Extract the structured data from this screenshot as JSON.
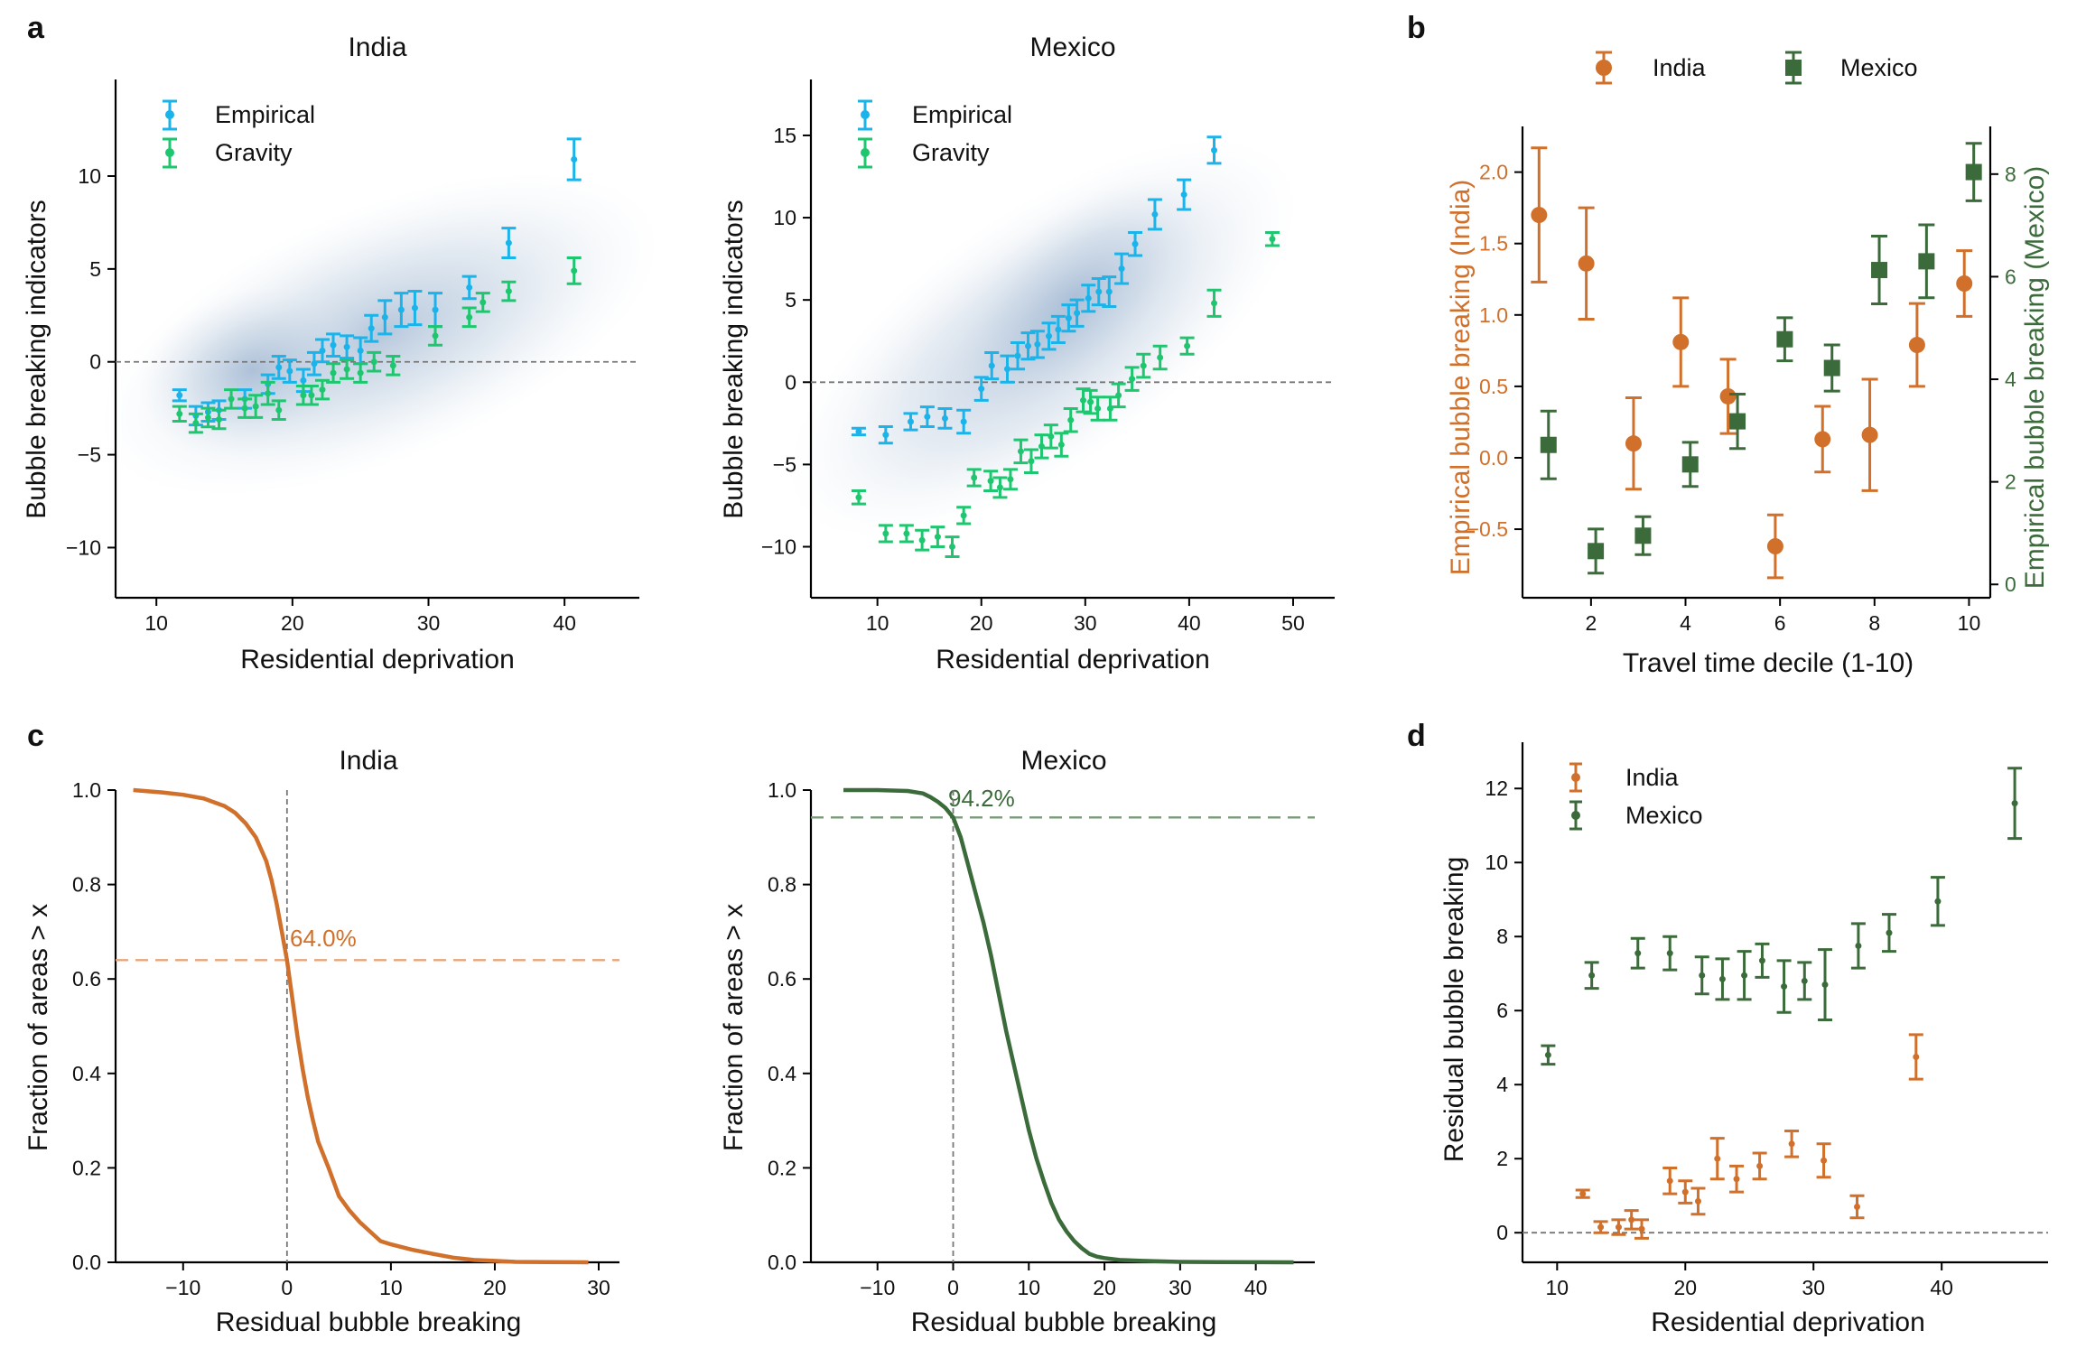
{
  "chart_data": [
    {
      "type": "scatter",
      "panel": "a",
      "title": "India",
      "xlabel": "Residential deprivation",
      "ylabel": "Bubble breaking indicators",
      "xlim": [
        7,
        45.5
      ],
      "ylim": [
        -12.7,
        15.2
      ],
      "xticks": [
        10,
        20,
        30,
        40
      ],
      "xtick_labels": [
        "10",
        "20",
        "30",
        "40"
      ],
      "yticks": [
        -10,
        -5,
        0,
        5,
        10
      ],
      "ytick_labels": [
        "−10",
        "−5",
        "0",
        "5",
        "10"
      ],
      "hline": 0,
      "legend": [
        "Empirical",
        "Gravity"
      ],
      "series": [
        {
          "name": "Empirical",
          "color": "#1ab3ea",
          "x": [
            11.7,
            12.9,
            13.8,
            14.6,
            16.5,
            18.2,
            19.0,
            19.8,
            20.8,
            21.6,
            22.2,
            23.0,
            24.0,
            25.0,
            25.8,
            26.8,
            28.0,
            29.0,
            30.5,
            33.0,
            35.9,
            40.7
          ],
          "y": [
            -1.8,
            -2.9,
            -2.7,
            -2.6,
            -2.0,
            -1.2,
            -0.3,
            -0.5,
            -1.0,
            -0.1,
            0.6,
            0.9,
            0.8,
            0.6,
            1.8,
            2.4,
            2.8,
            2.9,
            2.8,
            4.0,
            6.4,
            10.9
          ],
          "err": [
            0.3,
            0.5,
            0.5,
            0.5,
            0.5,
            0.5,
            0.6,
            0.6,
            0.6,
            0.6,
            0.6,
            0.6,
            0.6,
            0.7,
            0.7,
            0.9,
            0.9,
            0.9,
            0.9,
            0.6,
            0.8,
            1.1
          ]
        },
        {
          "name": "Gravity",
          "color": "#1ec76f",
          "x": [
            11.7,
            12.9,
            13.8,
            14.6,
            15.5,
            16.5,
            17.3,
            18.2,
            19.0,
            20.8,
            21.4,
            22.2,
            23.0,
            24.0,
            25.0,
            26.0,
            27.4,
            30.5,
            33.0,
            34.0,
            35.9,
            40.7
          ],
          "y": [
            -2.8,
            -3.3,
            -3.0,
            -3.1,
            -2.0,
            -2.5,
            -2.4,
            -1.7,
            -2.6,
            -1.8,
            -1.8,
            -1.5,
            -0.6,
            -0.4,
            -0.6,
            0.0,
            -0.2,
            1.4,
            2.4,
            3.2,
            3.8,
            4.9
          ],
          "err": [
            0.4,
            0.5,
            0.5,
            0.5,
            0.5,
            0.5,
            0.6,
            0.6,
            0.5,
            0.5,
            0.5,
            0.5,
            0.5,
            0.5,
            0.5,
            0.5,
            0.5,
            0.5,
            0.5,
            0.5,
            0.5,
            0.7
          ]
        }
      ]
    },
    {
      "type": "scatter",
      "panel": "a",
      "title": "Mexico",
      "xlabel": "Residential deprivation",
      "ylabel": "Bubble breaking indicators",
      "xlim": [
        3.6,
        54
      ],
      "ylim": [
        -13.1,
        18.4
      ],
      "xticks": [
        10,
        20,
        30,
        40,
        50
      ],
      "xtick_labels": [
        "10",
        "20",
        "30",
        "40",
        "50"
      ],
      "yticks": [
        -10,
        -5,
        0,
        5,
        10,
        15
      ],
      "ytick_labels": [
        "−10",
        "−5",
        "0",
        "5",
        "10",
        "15"
      ],
      "hline": 0,
      "legend": [
        "Empirical",
        "Gravity"
      ],
      "series": [
        {
          "name": "Empirical",
          "color": "#1ab3ea",
          "x": [
            8.2,
            10.8,
            13.2,
            14.8,
            16.5,
            18.3,
            20.0,
            21.0,
            22.5,
            23.5,
            24.5,
            25.4,
            26.5,
            27.4,
            28.4,
            29.2,
            30.3,
            31.3,
            32.3,
            33.5,
            34.8,
            36.7,
            39.5,
            42.4
          ],
          "y": [
            -3.0,
            -3.2,
            -2.4,
            -2.1,
            -2.2,
            -2.4,
            -0.4,
            1.0,
            0.8,
            1.6,
            2.2,
            2.3,
            2.8,
            3.2,
            3.9,
            4.2,
            5.1,
            5.5,
            5.5,
            6.9,
            8.4,
            10.2,
            11.4,
            14.1
          ],
          "err": [
            0.2,
            0.5,
            0.5,
            0.6,
            0.6,
            0.7,
            0.7,
            0.8,
            0.8,
            0.8,
            0.8,
            0.8,
            0.8,
            0.8,
            0.8,
            0.8,
            0.8,
            0.8,
            0.9,
            0.9,
            0.7,
            0.9,
            0.9,
            0.8
          ]
        },
        {
          "name": "Gravity",
          "color": "#1ec76f",
          "x": [
            8.2,
            10.8,
            12.8,
            14.3,
            15.8,
            17.2,
            18.3,
            19.3,
            20.9,
            21.8,
            22.8,
            23.8,
            24.8,
            25.8,
            26.7,
            27.7,
            28.6,
            29.8,
            30.5,
            31.2,
            32.4,
            33.2,
            34.5,
            35.6,
            37.2,
            39.8,
            42.4,
            48.0
          ],
          "y": [
            -7.0,
            -9.2,
            -9.2,
            -9.6,
            -9.4,
            -10.0,
            -8.1,
            -5.8,
            -6.0,
            -6.4,
            -5.9,
            -4.2,
            -4.8,
            -3.9,
            -3.3,
            -3.8,
            -2.3,
            -1.1,
            -1.2,
            -1.6,
            -1.6,
            -0.8,
            0.2,
            1.0,
            1.5,
            2.2,
            4.8,
            8.7
          ],
          "err": [
            0.4,
            0.5,
            0.5,
            0.6,
            0.6,
            0.6,
            0.5,
            0.5,
            0.6,
            0.6,
            0.6,
            0.7,
            0.7,
            0.7,
            0.7,
            0.7,
            0.7,
            0.7,
            0.7,
            0.7,
            0.7,
            0.7,
            0.7,
            0.7,
            0.7,
            0.5,
            0.8,
            0.4
          ]
        }
      ]
    },
    {
      "type": "scatter",
      "panel": "b",
      "title": "",
      "xlabel": "Travel time decile (1-10)",
      "ylabel": "Empirical bubble breaking (India)",
      "ylabel_right": "Empirical bubble breaking (Mexico)",
      "xlim": [
        0.55,
        10.45
      ],
      "ylim": [
        -0.98,
        2.32
      ],
      "ylim_right": [
        -0.26,
        8.93
      ],
      "xticks": [
        2,
        4,
        6,
        8,
        10
      ],
      "xtick_labels": [
        "2",
        "4",
        "6",
        "8",
        "10"
      ],
      "yticks": [
        -0.5,
        0.0,
        0.5,
        1.0,
        1.5,
        2.0
      ],
      "ytick_labels": [
        "−0.5",
        "0.0",
        "0.5",
        "1.0",
        "1.5",
        "2.0"
      ],
      "yticks_right": [
        0,
        2,
        4,
        6,
        8
      ],
      "ytick_labels_right": [
        "0",
        "2",
        "4",
        "6",
        "8"
      ],
      "legend": [
        "India",
        "Mexico"
      ],
      "series": [
        {
          "name": "India",
          "color": "#d0702a",
          "marker": "circle",
          "axis": "left",
          "x": [
            0.9,
            1.9,
            2.9,
            3.9,
            4.9,
            5.9,
            6.9,
            7.9,
            8.9,
            9.9
          ],
          "y": [
            1.7,
            1.36,
            0.1,
            0.81,
            0.43,
            -0.62,
            0.13,
            0.16,
            0.79,
            1.22
          ],
          "err": [
            0.47,
            0.39,
            0.32,
            0.31,
            0.26,
            0.22,
            0.23,
            0.39,
            0.29,
            0.23
          ]
        },
        {
          "name": "Mexico",
          "color": "#3b6b3a",
          "marker": "square",
          "axis": "right",
          "x": [
            1.1,
            2.1,
            3.1,
            4.1,
            5.1,
            6.1,
            7.1,
            8.1,
            9.1,
            10.1
          ],
          "y": [
            2.72,
            0.65,
            0.95,
            2.34,
            3.18,
            4.78,
            4.22,
            6.13,
            6.3,
            8.04
          ],
          "err": [
            0.66,
            0.43,
            0.37,
            0.43,
            0.53,
            0.42,
            0.45,
            0.66,
            0.71,
            0.56
          ]
        }
      ]
    },
    {
      "type": "line",
      "panel": "c",
      "title": "India",
      "xlabel": "Residual bubble breaking",
      "ylabel": "Fraction of areas > x",
      "xlim": [
        -16.5,
        32
      ],
      "ylim": [
        0,
        1.0
      ],
      "xticks": [
        -10,
        0,
        10,
        20,
        30
      ],
      "xtick_labels": [
        "−10",
        "0",
        "10",
        "20",
        "30"
      ],
      "yticks": [
        0,
        0.2,
        0.4,
        0.6,
        0.8,
        1.0
      ],
      "ytick_labels": [
        "0.0",
        "0.2",
        "0.4",
        "0.6",
        "0.8",
        "1.0"
      ],
      "vline": 0,
      "hline": 0.64,
      "annotation": "64.0%",
      "series": [
        {
          "name": "India",
          "color": "#d0702a",
          "x": [
            -14.8,
            -12,
            -10,
            -8,
            -6,
            -5,
            -4,
            -3,
            -2,
            -1.5,
            -1,
            -0.5,
            0,
            0.5,
            1,
            1.5,
            2,
            2.5,
            3,
            4,
            5,
            6,
            7,
            8,
            9,
            10,
            12,
            14,
            16,
            18,
            20,
            22,
            25,
            29
          ],
          "y": [
            1.0,
            0.995,
            0.99,
            0.982,
            0.966,
            0.952,
            0.93,
            0.9,
            0.85,
            0.81,
            0.76,
            0.7,
            0.64,
            0.56,
            0.48,
            0.41,
            0.35,
            0.3,
            0.255,
            0.2,
            0.14,
            0.11,
            0.085,
            0.065,
            0.045,
            0.038,
            0.027,
            0.018,
            0.01,
            0.005,
            0.003,
            0.001,
            0.0005,
            0.0
          ]
        }
      ]
    },
    {
      "type": "line",
      "panel": "c",
      "title": "Mexico",
      "xlabel": "Residual bubble breaking",
      "ylabel": "Fraction of areas > x",
      "xlim": [
        -18.8,
        47.8
      ],
      "ylim": [
        0,
        1.0
      ],
      "xticks": [
        -10,
        0,
        10,
        20,
        30,
        40
      ],
      "xtick_labels": [
        "−10",
        "0",
        "10",
        "20",
        "30",
        "40"
      ],
      "yticks": [
        0,
        0.2,
        0.4,
        0.6,
        0.8,
        1.0
      ],
      "ytick_labels": [
        "0.0",
        "0.2",
        "0.4",
        "0.6",
        "0.8",
        "1.0"
      ],
      "vline": 0,
      "hline": 0.942,
      "annotation": "94.2%",
      "series": [
        {
          "name": "Mexico",
          "color": "#3b6b3a",
          "x": [
            -14.5,
            -10,
            -6,
            -4,
            -3,
            -2,
            -1,
            0,
            1,
            2,
            3,
            4,
            5,
            6,
            7,
            8,
            9,
            10,
            11,
            12,
            13,
            14,
            15,
            16,
            17,
            18,
            19,
            20,
            22,
            25,
            30,
            35,
            40,
            45
          ],
          "y": [
            1.0,
            1.0,
            0.998,
            0.993,
            0.985,
            0.975,
            0.962,
            0.942,
            0.9,
            0.84,
            0.78,
            0.72,
            0.65,
            0.57,
            0.49,
            0.42,
            0.35,
            0.28,
            0.22,
            0.17,
            0.125,
            0.09,
            0.065,
            0.045,
            0.03,
            0.018,
            0.012,
            0.009,
            0.005,
            0.003,
            0.001,
            0.0004,
            0.0001,
            0.0
          ]
        }
      ]
    },
    {
      "type": "scatter",
      "panel": "d",
      "title": "",
      "xlabel": "Residential deprivation",
      "ylabel": "Residual bubble breaking",
      "xlim": [
        7.3,
        48.3
      ],
      "ylim": [
        -0.8,
        13.25
      ],
      "xticks": [
        10,
        20,
        30,
        40
      ],
      "xtick_labels": [
        "10",
        "20",
        "30",
        "40"
      ],
      "yticks": [
        0,
        2,
        4,
        6,
        8,
        10,
        12
      ],
      "ytick_labels": [
        "0",
        "2",
        "4",
        "6",
        "8",
        "10",
        "12"
      ],
      "hline": 0,
      "legend": [
        "India",
        "Mexico"
      ],
      "series": [
        {
          "name": "India",
          "color": "#d0702a",
          "x": [
            12.0,
            13.4,
            14.8,
            15.8,
            16.6,
            18.8,
            20.0,
            21.0,
            22.5,
            24.0,
            25.8,
            28.3,
            30.8,
            33.4,
            38.0
          ],
          "y": [
            1.05,
            0.15,
            0.15,
            0.35,
            0.1,
            1.4,
            1.1,
            0.85,
            2.0,
            1.45,
            1.8,
            2.4,
            1.95,
            0.7,
            4.75
          ],
          "err": [
            0.1,
            0.15,
            0.2,
            0.25,
            0.25,
            0.35,
            0.3,
            0.35,
            0.55,
            0.35,
            0.35,
            0.35,
            0.45,
            0.3,
            0.6
          ]
        },
        {
          "name": "Mexico",
          "color": "#3b6b3a",
          "x": [
            9.3,
            12.7,
            16.3,
            18.8,
            21.3,
            22.9,
            24.6,
            26.0,
            27.7,
            29.3,
            30.9,
            33.5,
            35.9,
            39.7,
            45.7
          ],
          "y": [
            4.8,
            6.95,
            7.55,
            7.55,
            6.95,
            6.85,
            6.95,
            7.35,
            6.65,
            6.8,
            6.7,
            7.75,
            8.1,
            8.95,
            11.6
          ],
          "err": [
            0.25,
            0.35,
            0.4,
            0.45,
            0.5,
            0.55,
            0.65,
            0.45,
            0.7,
            0.5,
            0.95,
            0.6,
            0.5,
            0.65,
            0.95
          ]
        }
      ]
    }
  ],
  "panel_letters": {
    "a": "a",
    "b": "b",
    "c": "c",
    "d": "d"
  }
}
